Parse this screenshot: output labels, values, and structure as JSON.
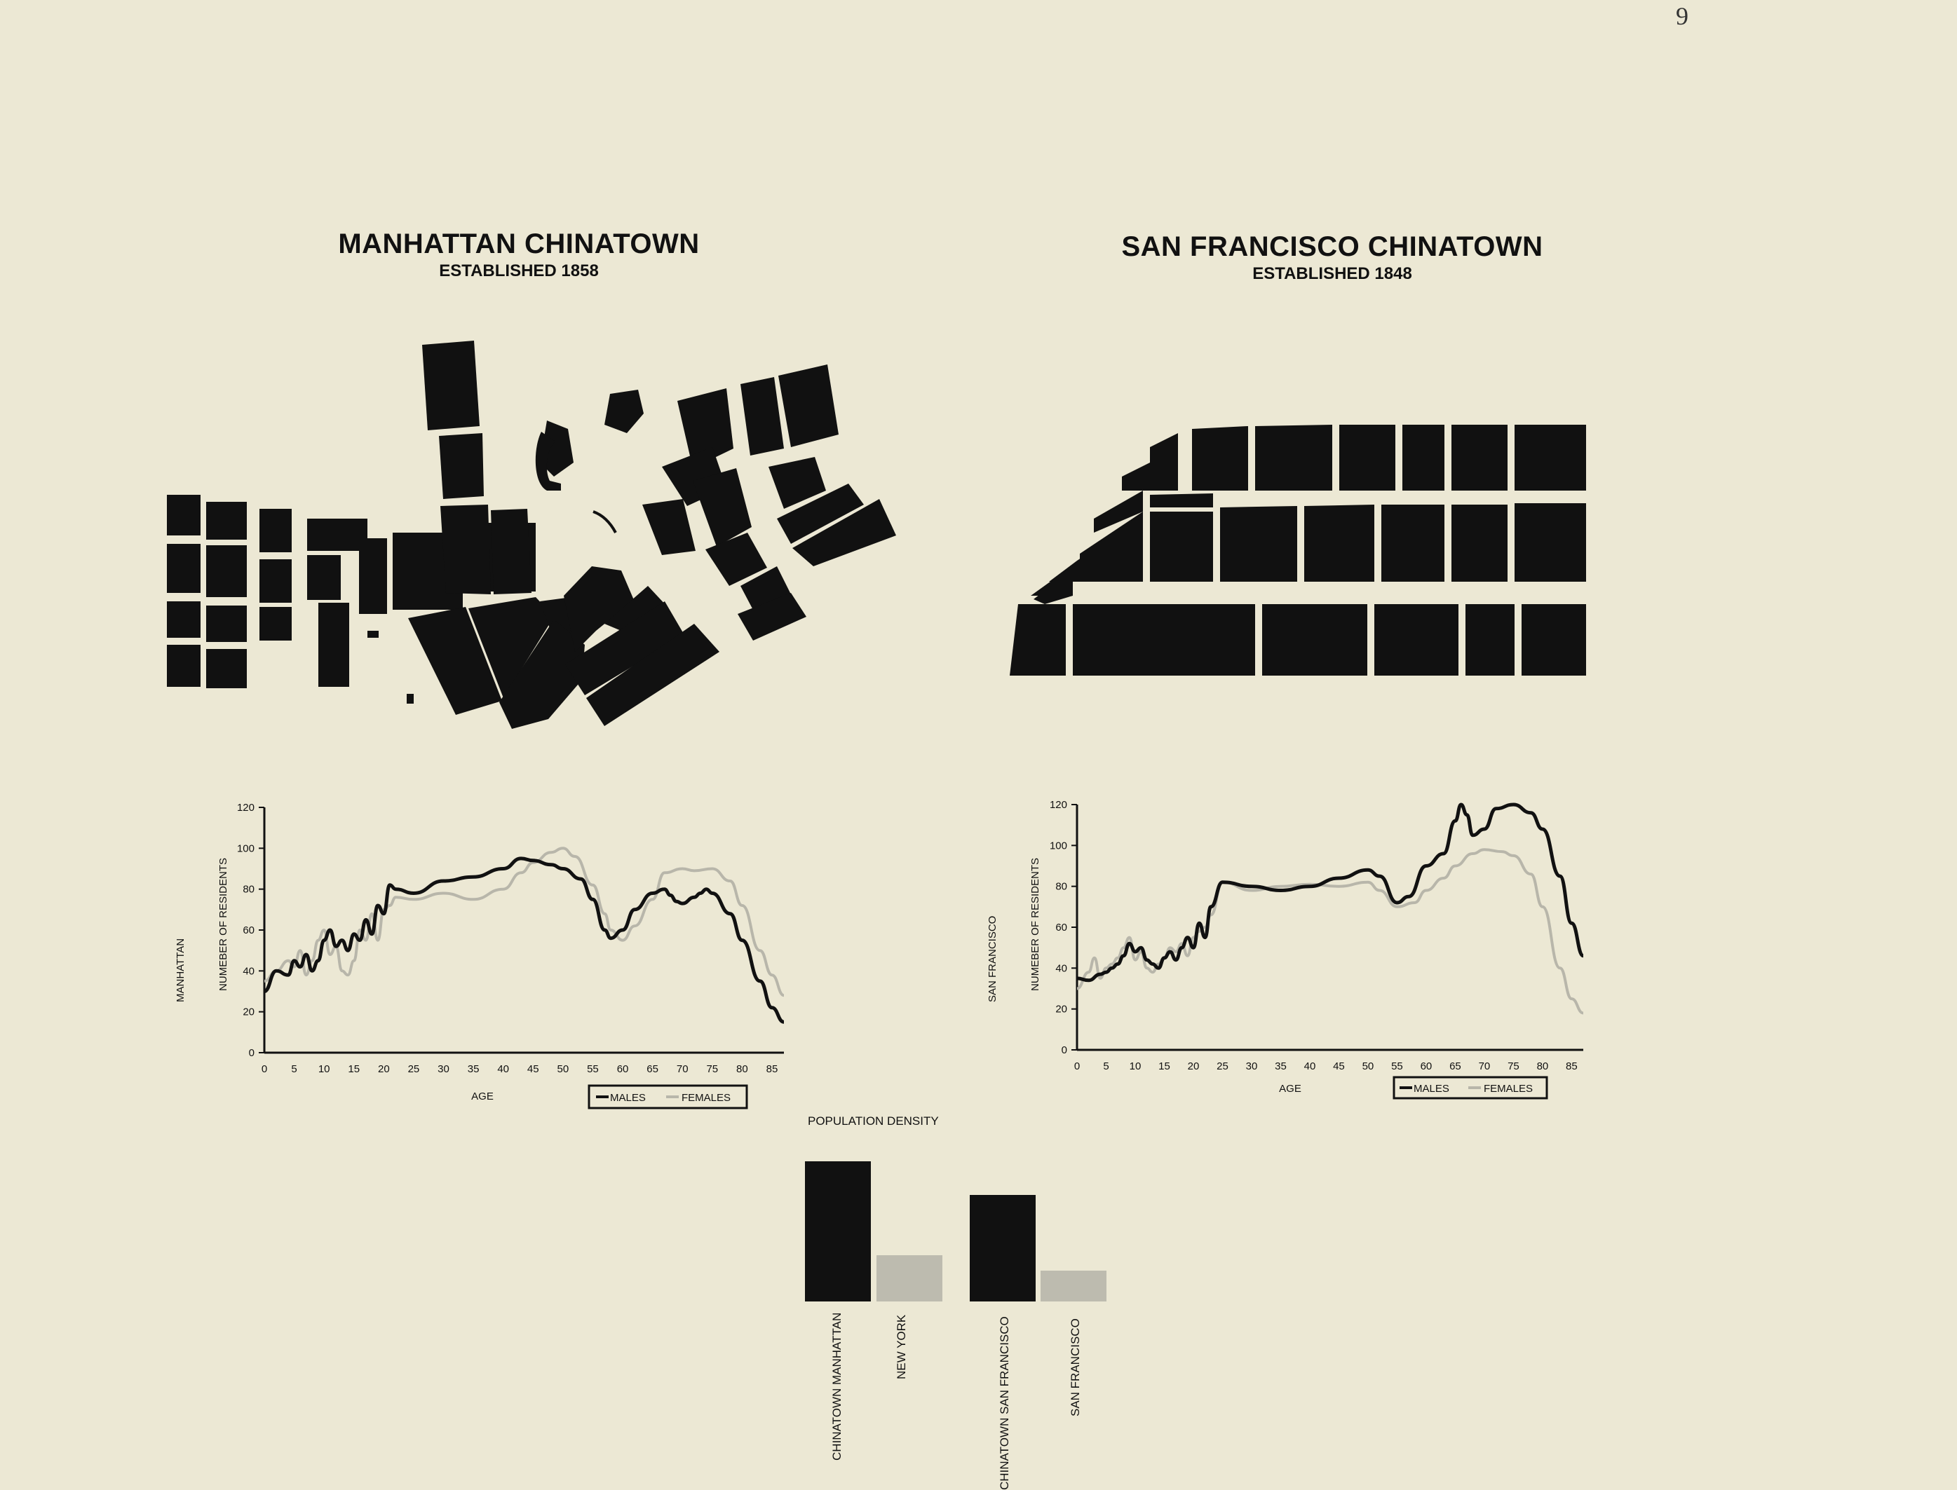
{
  "page_number": "9",
  "maps": [
    {
      "title": "MANHATTAN CHINATOWN",
      "subtitle": "ESTABLISHED 1858"
    },
    {
      "title": "SAN FRANCISCO CHINATOWN",
      "subtitle": "ESTABLISHED 1848"
    }
  ],
  "chart_data": [
    {
      "type": "line",
      "city_label": "MANHATTAN",
      "xlabel": "AGE",
      "ylabel": "NUMEBER OF RESIDENTS",
      "xlim": [
        0,
        87
      ],
      "ylim": [
        0,
        120
      ],
      "x_ticks": [
        "0",
        "5",
        "10",
        "15",
        "20",
        "25",
        "30",
        "35",
        "40",
        "45",
        "50",
        "55",
        "60",
        "65",
        "70",
        "75",
        "80",
        "85"
      ],
      "y_ticks": [
        "0",
        "20",
        "40",
        "60",
        "80",
        "100",
        "120"
      ],
      "series": [
        {
          "name": "MALES",
          "color": "#111111",
          "x": [
            0,
            2,
            4,
            5,
            6,
            7,
            8,
            9,
            10,
            11,
            12,
            13,
            14,
            15,
            16,
            17,
            18,
            19,
            20,
            21,
            22,
            25,
            30,
            35,
            40,
            43,
            45,
            48,
            50,
            53,
            55,
            57,
            58,
            60,
            62,
            65,
            67,
            68,
            69,
            70,
            72,
            73,
            74,
            75,
            78,
            80,
            83,
            85,
            87
          ],
          "y": [
            30,
            40,
            38,
            45,
            42,
            48,
            40,
            45,
            55,
            60,
            52,
            55,
            50,
            58,
            55,
            65,
            58,
            72,
            68,
            82,
            80,
            78,
            84,
            86,
            90,
            95,
            94,
            92,
            90,
            85,
            75,
            60,
            56,
            60,
            70,
            78,
            80,
            77,
            74,
            73,
            76,
            78,
            80,
            78,
            68,
            55,
            35,
            22,
            15
          ]
        },
        {
          "name": "FEMALES",
          "color": "#b8b6aa",
          "x": [
            0,
            2,
            4,
            5,
            6,
            7,
            8,
            9,
            10,
            11,
            12,
            13,
            14,
            15,
            16,
            17,
            18,
            19,
            20,
            21,
            22,
            25,
            30,
            35,
            40,
            43,
            45,
            48,
            50,
            52,
            55,
            57,
            58,
            60,
            62,
            65,
            67,
            70,
            72,
            75,
            78,
            80,
            83,
            85,
            87
          ],
          "y": [
            35,
            40,
            45,
            42,
            50,
            38,
            45,
            55,
            60,
            48,
            52,
            40,
            38,
            45,
            60,
            55,
            68,
            55,
            70,
            72,
            76,
            75,
            78,
            75,
            80,
            88,
            93,
            98,
            100,
            96,
            82,
            68,
            60,
            55,
            62,
            75,
            88,
            90,
            89,
            90,
            84,
            72,
            50,
            38,
            28
          ]
        }
      ]
    },
    {
      "type": "line",
      "city_label": "SAN FRANCISCO",
      "xlabel": "AGE",
      "ylabel": "NUMEBER OF RESIDENTS",
      "xlim": [
        0,
        87
      ],
      "ylim": [
        0,
        120
      ],
      "x_ticks": [
        "0",
        "5",
        "10",
        "15",
        "20",
        "25",
        "30",
        "35",
        "40",
        "45",
        "50",
        "55",
        "60",
        "65",
        "70",
        "75",
        "80",
        "85"
      ],
      "y_ticks": [
        "0",
        "20",
        "40",
        "60",
        "80",
        "100",
        "120"
      ],
      "series": [
        {
          "name": "MALES",
          "color": "#111111",
          "x": [
            0,
            2,
            4,
            5,
            6,
            7,
            8,
            9,
            10,
            11,
            12,
            13,
            14,
            15,
            16,
            17,
            18,
            19,
            20,
            21,
            22,
            23,
            25,
            30,
            35,
            40,
            45,
            50,
            52,
            55,
            57,
            60,
            63,
            65,
            66,
            67,
            68,
            70,
            72,
            75,
            78,
            80,
            83,
            85,
            87
          ],
          "y": [
            35,
            34,
            37,
            38,
            40,
            42,
            46,
            52,
            48,
            50,
            44,
            42,
            40,
            45,
            48,
            44,
            50,
            55,
            50,
            62,
            55,
            70,
            82,
            80,
            78,
            80,
            84,
            88,
            85,
            72,
            75,
            90,
            96,
            112,
            120,
            115,
            105,
            108,
            118,
            120,
            116,
            108,
            85,
            62,
            46
          ]
        },
        {
          "name": "FEMALES",
          "color": "#b8b6aa",
          "x": [
            0,
            2,
            3,
            4,
            5,
            6,
            7,
            8,
            9,
            10,
            11,
            12,
            13,
            14,
            15,
            16,
            17,
            18,
            19,
            20,
            21,
            22,
            23,
            25,
            30,
            35,
            40,
            45,
            50,
            52,
            55,
            58,
            60,
            63,
            65,
            68,
            70,
            73,
            75,
            78,
            80,
            83,
            85,
            87
          ],
          "y": [
            30,
            38,
            45,
            35,
            40,
            42,
            45,
            50,
            55,
            44,
            48,
            40,
            38,
            42,
            45,
            50,
            48,
            52,
            46,
            55,
            58,
            60,
            66,
            82,
            78,
            80,
            81,
            80,
            82,
            78,
            70,
            72,
            78,
            84,
            90,
            96,
            98,
            97,
            95,
            86,
            70,
            40,
            25,
            18
          ]
        }
      ]
    },
    {
      "type": "bar",
      "title": "POPULATION DENSITY",
      "categories": [
        "CHINATOWN MANHATTAN",
        "NEW YORK",
        "CHINATOWN SAN FRANCISCO",
        "SAN FRANCISCO"
      ],
      "values": [
        100,
        33,
        76,
        22
      ],
      "colors": [
        "#111111",
        "#bdbbaf",
        "#111111",
        "#bdbbaf"
      ]
    }
  ]
}
